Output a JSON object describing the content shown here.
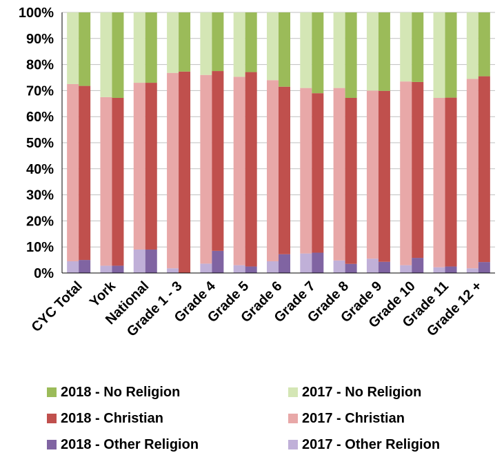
{
  "chart_data": {
    "type": "bar",
    "stacked": true,
    "percent": true,
    "ylim": [
      0,
      100
    ],
    "yticks": [
      "0%",
      "10%",
      "20%",
      "30%",
      "40%",
      "50%",
      "60%",
      "70%",
      "80%",
      "90%",
      "100%"
    ],
    "grid": true,
    "legend_position": "bottom",
    "categories": [
      "CYC Total",
      "York",
      "National",
      "Grade 1 - 3",
      "Grade 4",
      "Grade 5",
      "Grade 6",
      "Grade 7",
      "Grade 8",
      "Grade 9",
      "Grade 10",
      "Grade 11",
      "Grade 12 +"
    ],
    "groups": [
      {
        "year": "2017",
        "series": [
          {
            "name": "2017 - Other Religion",
            "color": "#c0b0d8",
            "values": [
              4.5,
              2.8,
              9,
              1.8,
              3.6,
              3,
              4.5,
              7.5,
              4.8,
              5.5,
              3,
              2.2,
              1.8
            ]
          },
          {
            "name": "2017 - Christian",
            "color": "#e8a8a8",
            "values": [
              68,
              64.7,
              64,
              75,
              72.4,
              72.3,
              69.5,
              63.5,
              66.2,
              64.5,
              70.5,
              65,
              72.7
            ]
          },
          {
            "name": "2017 - No Religion",
            "color": "#d4e6b5",
            "values": [
              27.5,
              32.5,
              27,
              23.2,
              24,
              24.7,
              26,
              29,
              29,
              30,
              26.5,
              32.8,
              25.5
            ]
          }
        ]
      },
      {
        "year": "2018",
        "series": [
          {
            "name": "2018 - Other Religion",
            "color": "#8064a2",
            "values": [
              5,
              2.8,
              9,
              0,
              8.5,
              2.5,
              7.2,
              7.8,
              3.5,
              4.3,
              5.8,
              2.5,
              4.2
            ]
          },
          {
            "name": "2018 - Christian",
            "color": "#c0504d",
            "values": [
              66.8,
              64.4,
              64,
              77.3,
              69,
              74.6,
              64.3,
              61.2,
              63.7,
              65.6,
              67.5,
              64.8,
              71.3
            ]
          },
          {
            "name": "2018 - No Religion",
            "color": "#9bbb59",
            "values": [
              28.2,
              32.8,
              27,
              22.7,
              22.5,
              22.9,
              28.5,
              31,
              32.8,
              30.1,
              26.7,
              32.7,
              24.5
            ]
          }
        ]
      }
    ]
  },
  "legend": [
    {
      "label": "2018 - No Religion",
      "color": "#9bbb59"
    },
    {
      "label": "2017 - No Religion",
      "color": "#d4e6b5"
    },
    {
      "label": "2018 - Christian",
      "color": "#c0504d"
    },
    {
      "label": "2017 - Christian",
      "color": "#e8a8a8"
    },
    {
      "label": "2018 - Other Religion",
      "color": "#8064a2"
    },
    {
      "label": "2017 - Other Religion",
      "color": "#c0b0d8"
    }
  ]
}
